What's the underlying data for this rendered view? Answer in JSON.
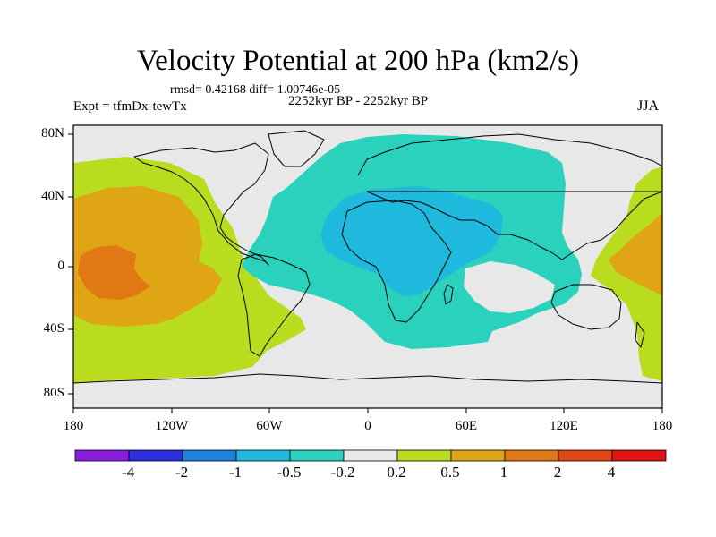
{
  "title": "Velocity Potential at 200 hPa (km2/s)",
  "stats": "rmsd= 0.42168  diff= 1.00746e-05",
  "experiment": "Expt = tfmDx-tewTx",
  "period": "2252kyr BP - 2252kyr BP",
  "season": "JJA",
  "y_axis": {
    "labels": [
      "80N",
      "40N",
      "0",
      "40S",
      "80S"
    ],
    "values": [
      80,
      40,
      0,
      -40,
      -80
    ],
    "range": [
      -90,
      90
    ]
  },
  "x_axis": {
    "labels": [
      "180",
      "120W",
      "60W",
      "0",
      "60E",
      "120E",
      "180"
    ],
    "values": [
      -180,
      -120,
      -60,
      0,
      60,
      120,
      180
    ],
    "range": [
      -180,
      180
    ]
  },
  "colorbar": {
    "labels": [
      "-4",
      "-2",
      "-1",
      "-0.5",
      "-0.2",
      "0.2",
      "0.5",
      "1",
      "2",
      "4"
    ],
    "colors": [
      "#8a1ee0",
      "#2a2fe0",
      "#1e82dc",
      "#1eb9dc",
      "#2ad2be",
      "#e8e8e8",
      "#b9dc1e",
      "#e0a514",
      "#e07814",
      "#e04614",
      "#e01414"
    ]
  },
  "chart_data": {
    "type": "heatmap",
    "title": "Velocity Potential at 200 hPa (km2/s)",
    "variable": "velocity potential anomaly",
    "units": "km2/s",
    "levels": [
      -4,
      -2,
      -1,
      -0.5,
      -0.2,
      0.2,
      0.5,
      1,
      2,
      4
    ],
    "regions": [
      {
        "name": "central Pacific positive core",
        "lon": -165,
        "lat": 0,
        "value_range": [
          2,
          4
        ]
      },
      {
        "name": "eastern/central Pacific positive",
        "lon": -140,
        "lat": 10,
        "value_range": [
          1,
          2
        ]
      },
      {
        "name": "Pacific broad positive",
        "lon": -130,
        "lat": 20,
        "value_range": [
          0.5,
          1
        ]
      },
      {
        "name": "western Pacific positive",
        "lon": 160,
        "lat": 0,
        "value_range": [
          0.5,
          1
        ]
      },
      {
        "name": "Africa / Middle East negative core",
        "lon": 25,
        "lat": 10,
        "value_range": [
          -1,
          -0.5
        ]
      },
      {
        "name": "Atlantic-Eurasia-Indian Ocean negative",
        "lon": 30,
        "lat": 30,
        "value_range": [
          -0.5,
          -0.2
        ]
      }
    ],
    "lon_range": [
      -180,
      180
    ],
    "lat_range": [
      -90,
      90
    ]
  }
}
